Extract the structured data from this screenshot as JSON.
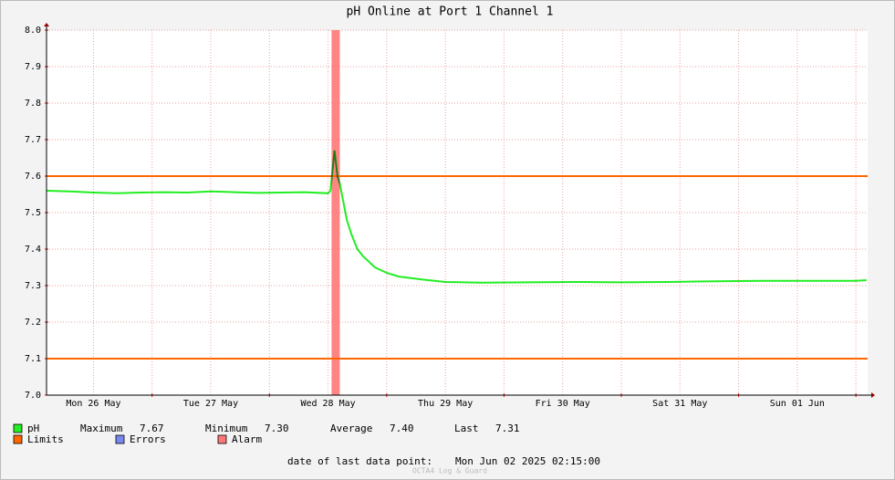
{
  "chart_data": {
    "type": "line",
    "title": "pH Online at Port 1 Channel 1",
    "x": [
      26.1,
      26.3,
      26.5,
      26.7,
      26.9,
      27.1,
      27.3,
      27.5,
      27.7,
      27.9,
      28.1,
      28.3,
      28.5,
      28.52,
      28.555,
      28.58,
      28.6,
      28.63,
      28.66,
      28.7,
      28.75,
      28.8,
      28.9,
      29.0,
      29.1,
      29.3,
      29.5,
      29.8,
      30.2,
      30.6,
      31.0,
      31.4,
      31.8,
      32.2,
      32.6,
      33.0,
      33.09
    ],
    "series": [
      {
        "name": "pH",
        "color": "#22ee22",
        "values": [
          7.56,
          7.558,
          7.555,
          7.553,
          7.555,
          7.556,
          7.555,
          7.558,
          7.556,
          7.554,
          7.555,
          7.556,
          7.553,
          7.56,
          7.67,
          7.6,
          7.58,
          7.53,
          7.48,
          7.44,
          7.4,
          7.38,
          7.35,
          7.335,
          7.325,
          7.317,
          7.31,
          7.308,
          7.309,
          7.31,
          7.309,
          7.31,
          7.312,
          7.313,
          7.313,
          7.313,
          7.315
        ],
        "stats": [
          [
            "Maximum",
            "7.67"
          ],
          [
            "Minimum",
            "7.30"
          ],
          [
            "Average",
            "7.40"
          ],
          [
            "Last",
            "7.31"
          ]
        ]
      }
    ],
    "limits": {
      "name": "Limits",
      "color": "#ff6600",
      "values": [
        7.6,
        7.1
      ]
    },
    "errors": {
      "name": "Errors",
      "color": "#7788ee"
    },
    "alarm": {
      "name": "Alarm",
      "color": "#ff7777",
      "ranges": [
        [
          28.53,
          28.6
        ]
      ]
    },
    "xlim": [
      26.1,
      33.1
    ],
    "xticks": [
      {
        "value": 26.5,
        "label": "Mon 26 May"
      },
      {
        "value": 27.5,
        "label": "Tue 27 May"
      },
      {
        "value": 28.5,
        "label": "Wed 28 May"
      },
      {
        "value": 29.5,
        "label": "Thu 29 May"
      },
      {
        "value": 30.5,
        "label": "Fri 30 May"
      },
      {
        "value": 31.5,
        "label": "Sat 31 May"
      },
      {
        "value": 32.5,
        "label": "Sun 01 Jun"
      }
    ],
    "xgrid": [
      27,
      28,
      29,
      30,
      31,
      32,
      33
    ],
    "ylim": [
      7.0,
      8.0
    ],
    "yticks": [
      {
        "value": 7.0,
        "label": "7.0"
      },
      {
        "value": 7.1,
        "label": "7.1"
      },
      {
        "value": 7.2,
        "label": "7.2"
      },
      {
        "value": 7.3,
        "label": "7.3"
      },
      {
        "value": 7.4,
        "label": "7.4"
      },
      {
        "value": 7.5,
        "label": "7.5"
      },
      {
        "value": 7.6,
        "label": "7.6"
      },
      {
        "value": 7.7,
        "label": "7.7"
      },
      {
        "value": 7.8,
        "label": "7.8"
      },
      {
        "value": 7.9,
        "label": "7.9"
      },
      {
        "value": 8.0,
        "label": "8.0"
      }
    ],
    "grid": true,
    "footer_label": "date of last data point:",
    "footer_value": "Mon Jun 02 2025 02:15:00",
    "watermark": "OCTA4 Log & Guard"
  }
}
